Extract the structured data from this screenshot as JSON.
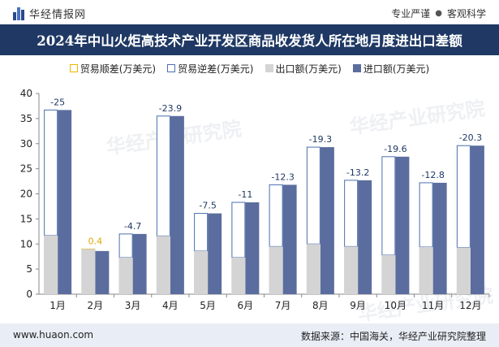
{
  "header": {
    "brand_name": "华经情报网",
    "tag_1": "专业严谨",
    "tag_separator": "●",
    "tag_2": "客观科学"
  },
  "title": "2024年中山火炬高技术产业开发区商品收发货人所在地月度进出口差额",
  "legend": {
    "surplus": "贸易顺差(万美元)",
    "deficit": "贸易逆差(万美元)",
    "export": "出口额(万美元)",
    "import": "进口额(万美元)"
  },
  "watermark": "华经产业研究院",
  "footer": {
    "website": "www.huaon.com",
    "source": "数据来源：中国海关，华经产业研究院整理"
  },
  "colors": {
    "title_bg": "#1f3864",
    "import": "#5b6d9e",
    "export": "#d4d4d4",
    "surplus_outline": "#f0b400",
    "deficit_outline": "#4a6fb0",
    "surplus_label": "#e0a800",
    "deficit_label": "#1f3864"
  },
  "chart_data": {
    "type": "bar",
    "categories": [
      "1月",
      "2月",
      "3月",
      "4月",
      "5月",
      "6月",
      "7月",
      "8月",
      "9月",
      "10月",
      "11月",
      "12月"
    ],
    "series": [
      {
        "name": "出口额(万美元)",
        "values": [
          11.7,
          9.0,
          7.3,
          11.6,
          8.6,
          7.3,
          9.5,
          10.0,
          9.5,
          7.8,
          9.4,
          9.3
        ]
      },
      {
        "name": "进口额(万美元)",
        "values": [
          36.7,
          8.6,
          12.0,
          35.5,
          16.1,
          18.3,
          21.8,
          29.3,
          22.7,
          27.4,
          22.2,
          29.6
        ]
      },
      {
        "name": "贸易顺差/逆差(万美元)",
        "values": [
          -25,
          0.4,
          -4.7,
          -23.9,
          -7.5,
          -11,
          -12.3,
          -19.3,
          -13.2,
          -19.6,
          -12.8,
          -20.3
        ]
      }
    ],
    "balance_labels": [
      "-25",
      "0.4",
      "-4.7",
      "-23.9",
      "-7.5",
      "-11",
      "-12.3",
      "-19.3",
      "-13.2",
      "-19.6",
      "-12.8",
      "-20.3"
    ],
    "ylim": [
      0,
      40
    ],
    "yticks": [
      "0",
      "5",
      "10",
      "15",
      "20",
      "25",
      "30",
      "35",
      "40"
    ],
    "grid": false,
    "legend_position": "top"
  }
}
